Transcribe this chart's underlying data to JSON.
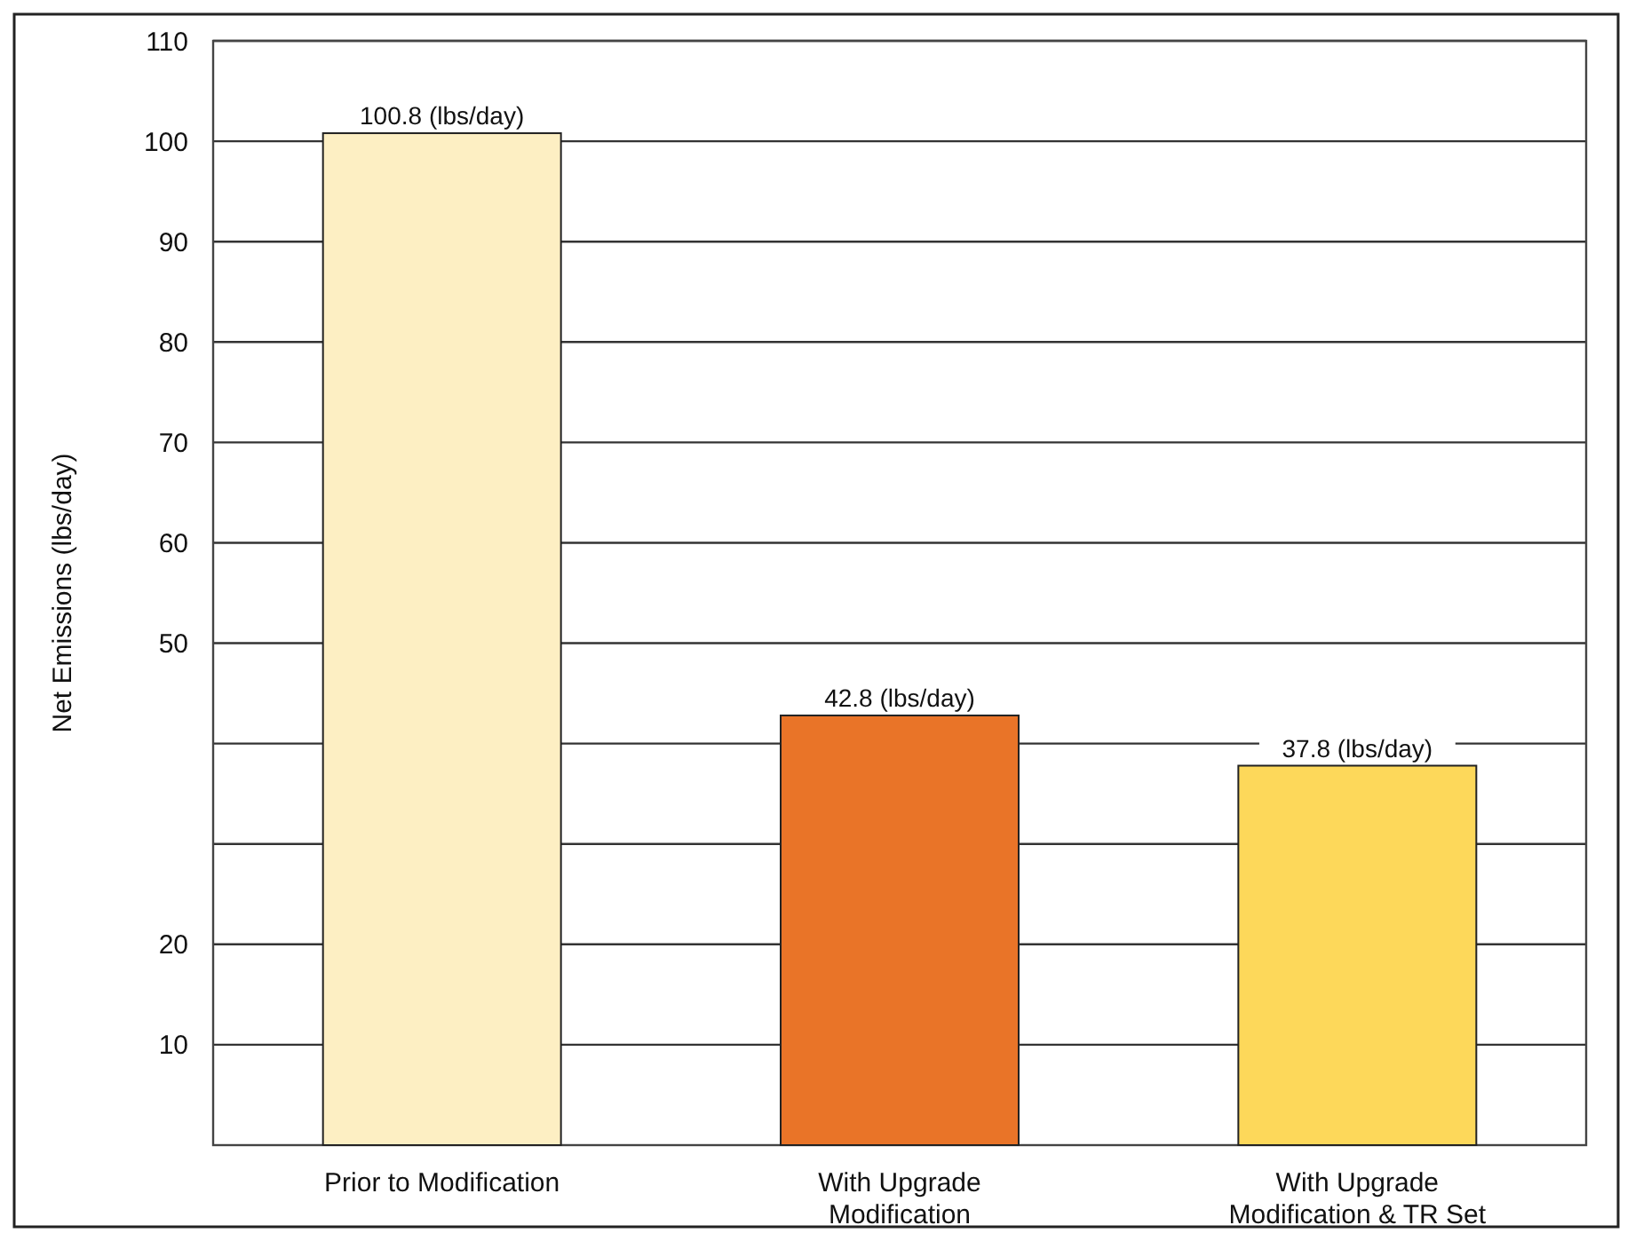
{
  "chart_data": {
    "type": "bar",
    "ylabel": "Net Emissions (lbs/day)",
    "categories": [
      "Prior to Modification",
      "With Upgrade Modification",
      "With Upgrade Modification & TR Set"
    ],
    "values": [
      100.8,
      42.8,
      37.8
    ],
    "colors": [
      "#fdefc3",
      "#e97428",
      "#fdd85a"
    ],
    "value_labels": [
      "100.8 (lbs/day)",
      "42.8 (lbs/day)",
      "37.8 (lbs/day)"
    ],
    "ylim": [
      0,
      110
    ],
    "yticks": [
      10,
      20,
      {
        "value": 30,
        "label": null
      },
      {
        "value": 40,
        "label": null
      },
      50,
      60,
      70,
      80,
      90,
      100,
      110
    ],
    "grid": true
  }
}
